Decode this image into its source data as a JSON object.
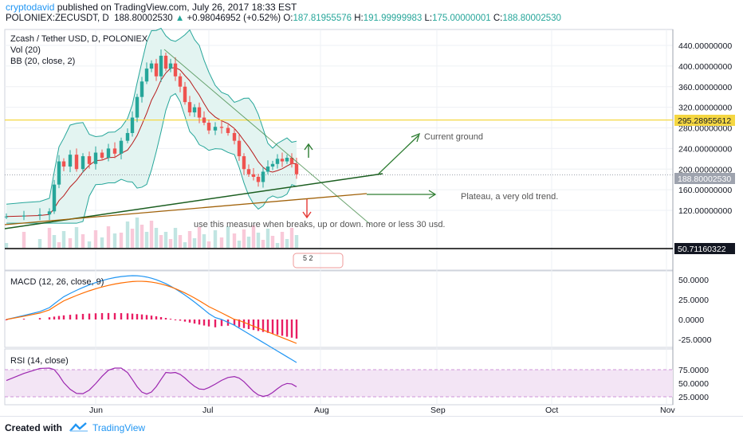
{
  "header": {
    "author": "cryptodavid",
    "published_text": "published on TradingView.com, July 26, 2017 18:33 EST",
    "symbol_line": "POLONIEX:ZECUSDT, D",
    "last": "188.80002530",
    "change_arrow": "▲",
    "change": "+0.98046952 (+0.52%)",
    "o_label": "O:",
    "o_value": "187.81955576",
    "h_label": "H:",
    "h_value": "191.99999983",
    "l_label": "L:",
    "l_value": "175.00000001",
    "c_label": "C:",
    "c_value": "188.80002530"
  },
  "main_pane": {
    "title": "Zcash / Tether USD, D, POLONIEX",
    "vol_label": "Vol (20)",
    "bb_label": "BB (20, close, 2)",
    "axis_ticks": [
      "440.00000000",
      "400.00000000",
      "360.00000000",
      "320.00000000",
      "280.00000000",
      "240.00000000",
      "200.00000000",
      "160.00000000",
      "120.00000000"
    ],
    "price_badge_yellow": "295.28955612",
    "price_badge_last": "188.80002530",
    "price_badge_black": "50.71160322",
    "annotation_current_ground": "Current ground",
    "annotation_plateau": "Plateau, a very old trend.",
    "annotation_measure": "use this measure when breaks, up or down. more or less 30 usd.",
    "event_icons_text": "5  2"
  },
  "macd_pane": {
    "title": "MACD (12, 26, close, 9)",
    "axis_ticks": [
      "50.0000",
      "25.0000",
      "0.0000",
      "-25.0000"
    ]
  },
  "rsi_pane": {
    "title": "RSI (14, close)",
    "axis_ticks": [
      "75.0000",
      "50.0000",
      "25.0000"
    ]
  },
  "time_axis": [
    "Jun",
    "Jul",
    "Aug",
    "Sep",
    "Oct",
    "Nov"
  ],
  "footer": {
    "created_with": "Created with",
    "brand": "TradingView"
  },
  "colors": {
    "candle_up": "#26a69a",
    "candle_down": "#ef5350",
    "bb_fill": "#e3f4f1",
    "bb_band": "#26a69a",
    "bb_basis": "#b71c1c",
    "macd_line": "#2196f3",
    "signal_line": "#ff6d00",
    "hist": "#e91e63",
    "rsi_line": "#9c27b0",
    "rsi_band_fill": "#f3e5f5",
    "annotation_green": "#2e7d32",
    "trend_dark": "#1b5e20",
    "trend_brown": "#a1620a",
    "yellow_line": "#f5d742",
    "arrow_red": "#e53935"
  },
  "chart_data": {
    "type": "candlestick",
    "title": "Zcash / Tether USD, D, POLONIEX",
    "ylim": [
      90,
      460
    ],
    "note": "",
    "x": [
      "2017-05-06",
      "2017-05-09",
      "2017-05-12",
      "2017-05-15",
      "2017-05-18",
      "2017-05-21",
      "2017-05-24",
      "2017-05-27",
      "2017-05-30",
      "2017-06-02",
      "2017-06-05",
      "2017-06-08",
      "2017-06-11",
      "2017-06-14",
      "2017-06-17",
      "2017-06-20",
      "2017-06-23",
      "2017-06-26",
      "2017-06-29",
      "2017-07-02",
      "2017-07-05",
      "2017-07-08",
      "2017-07-11",
      "2017-07-14",
      "2017-07-17",
      "2017-07-20",
      "2017-07-23",
      "2017-07-26"
    ],
    "close": [
      110,
      108,
      112,
      115,
      160,
      240,
      220,
      230,
      250,
      300,
      330,
      370,
      390,
      400,
      380,
      340,
      320,
      300,
      290,
      280,
      260,
      250,
      210,
      200,
      180,
      210,
      220,
      188.8
    ],
    "levels": [
      {
        "value": 295.28955612,
        "color": "yellow"
      },
      {
        "value": 188.8000253,
        "color": "dotted"
      },
      {
        "value": 50.71160322,
        "color": "black"
      }
    ]
  }
}
